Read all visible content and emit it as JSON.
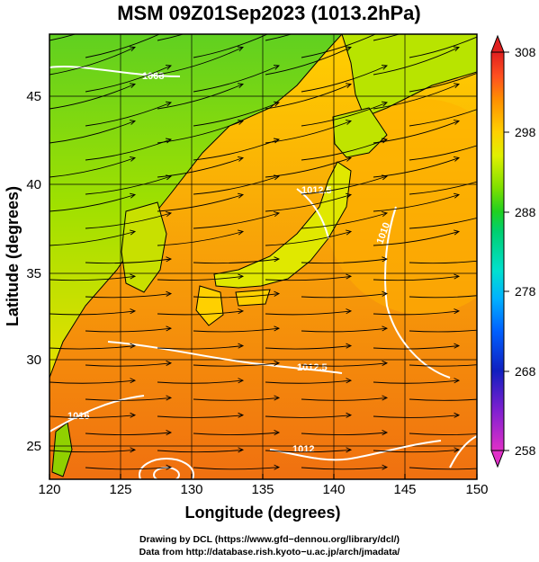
{
  "title": "MSM 09Z01Sep2023 (1013.2hPa)",
  "x_axis": {
    "label": "Longitude (degrees)",
    "ticks": [
      "120",
      "125",
      "130",
      "135",
      "140",
      "145",
      "150"
    ],
    "range": [
      120,
      150
    ]
  },
  "y_axis": {
    "label": "Latitude  (degrees)",
    "ticks": [
      "25",
      "30",
      "35",
      "40",
      "45"
    ],
    "range": [
      22.4,
      47.6
    ]
  },
  "colorbar": {
    "ticks": [
      "308",
      "298",
      "288",
      "278",
      "268",
      "258"
    ],
    "min": 258,
    "max": 308,
    "colors": [
      "#e030c8",
      "#8020d0",
      "#1020c0",
      "#0060ff",
      "#00b0ff",
      "#00e0d0",
      "#00d070",
      "#20d020",
      "#80e000",
      "#e0f000",
      "#ffd000",
      "#ff9000",
      "#ff5020",
      "#e02020"
    ]
  },
  "isobar_labels": [
    "1008",
    "1012",
    "1016",
    "1012.5",
    "1010",
    "1012.5",
    "1008.5",
    "1006"
  ],
  "credits": {
    "line1": "Drawing by DCL (https://www.gfd−dennou.org/library/dcl/)",
    "line2": "Data from http://database.rish.kyoto−u.ac.jp/arch/jmadata/"
  }
}
